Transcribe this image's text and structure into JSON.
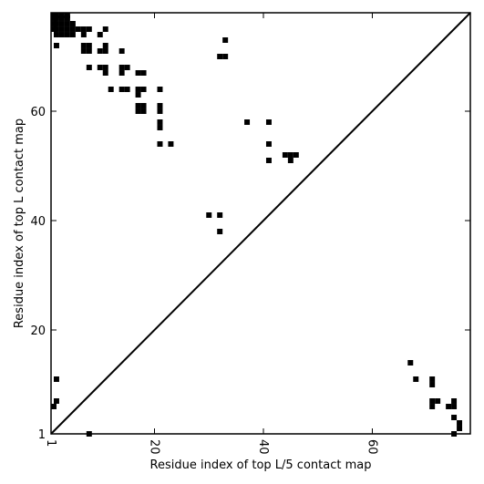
{
  "chart_data": {
    "type": "heatmap",
    "xlabel": "Residue index of top L/5 contact map",
    "ylabel": "Residue index of top L contact map",
    "xlim": [
      1,
      78
    ],
    "ylim": [
      1,
      78
    ],
    "xticks": [
      1,
      20,
      40,
      60
    ],
    "yticks": [
      1,
      20,
      40,
      60
    ],
    "diagonal": true,
    "grid": false,
    "series": [
      {
        "name": "",
        "color": "#000000",
        "points": [
          [
            1,
            78
          ],
          [
            2,
            78
          ],
          [
            3,
            78
          ],
          [
            4,
            78
          ],
          [
            1,
            77
          ],
          [
            2,
            77
          ],
          [
            3,
            77
          ],
          [
            4,
            77
          ],
          [
            1,
            76
          ],
          [
            2,
            76
          ],
          [
            3,
            76
          ],
          [
            4,
            76
          ],
          [
            5,
            76
          ],
          [
            1,
            75
          ],
          [
            2,
            75
          ],
          [
            3,
            75
          ],
          [
            4,
            75
          ],
          [
            5,
            75
          ],
          [
            6,
            75
          ],
          [
            7,
            75
          ],
          [
            8,
            75
          ],
          [
            11,
            75
          ],
          [
            2,
            74
          ],
          [
            3,
            74
          ],
          [
            4,
            74
          ],
          [
            5,
            74
          ],
          [
            7,
            74
          ],
          [
            10,
            74
          ],
          [
            2,
            72
          ],
          [
            7,
            72
          ],
          [
            8,
            72
          ],
          [
            11,
            72
          ],
          [
            7,
            71
          ],
          [
            8,
            71
          ],
          [
            10,
            71
          ],
          [
            11,
            71
          ],
          [
            14,
            71
          ],
          [
            33,
            73
          ],
          [
            32,
            70
          ],
          [
            33,
            70
          ],
          [
            8,
            68
          ],
          [
            10,
            68
          ],
          [
            11,
            68
          ],
          [
            14,
            68
          ],
          [
            15,
            68
          ],
          [
            11,
            67
          ],
          [
            14,
            67
          ],
          [
            17,
            67
          ],
          [
            18,
            67
          ],
          [
            12,
            64
          ],
          [
            14,
            64
          ],
          [
            15,
            64
          ],
          [
            17,
            64
          ],
          [
            18,
            64
          ],
          [
            21,
            64
          ],
          [
            17,
            63
          ],
          [
            21,
            61
          ],
          [
            17,
            61
          ],
          [
            18,
            61
          ],
          [
            17,
            60
          ],
          [
            18,
            60
          ],
          [
            21,
            60
          ],
          [
            21,
            58
          ],
          [
            21,
            57
          ],
          [
            37,
            58
          ],
          [
            41,
            58
          ],
          [
            21,
            54
          ],
          [
            23,
            54
          ],
          [
            41,
            54
          ],
          [
            44,
            52
          ],
          [
            45,
            52
          ],
          [
            46,
            52
          ],
          [
            41,
            51
          ],
          [
            45,
            51
          ],
          [
            30,
            41
          ],
          [
            32,
            41
          ],
          [
            32,
            38
          ],
          [
            67,
            14
          ],
          [
            2,
            11
          ],
          [
            68,
            11
          ],
          [
            71,
            11
          ],
          [
            71,
            10
          ],
          [
            2,
            7
          ],
          [
            71,
            7
          ],
          [
            72,
            7
          ],
          [
            75,
            7
          ],
          [
            1,
            6
          ],
          [
            71,
            6
          ],
          [
            74,
            6
          ],
          [
            75,
            6
          ],
          [
            75,
            4
          ],
          [
            76,
            3
          ],
          [
            76,
            2
          ],
          [
            8,
            1
          ],
          [
            75,
            1
          ]
        ]
      }
    ]
  }
}
